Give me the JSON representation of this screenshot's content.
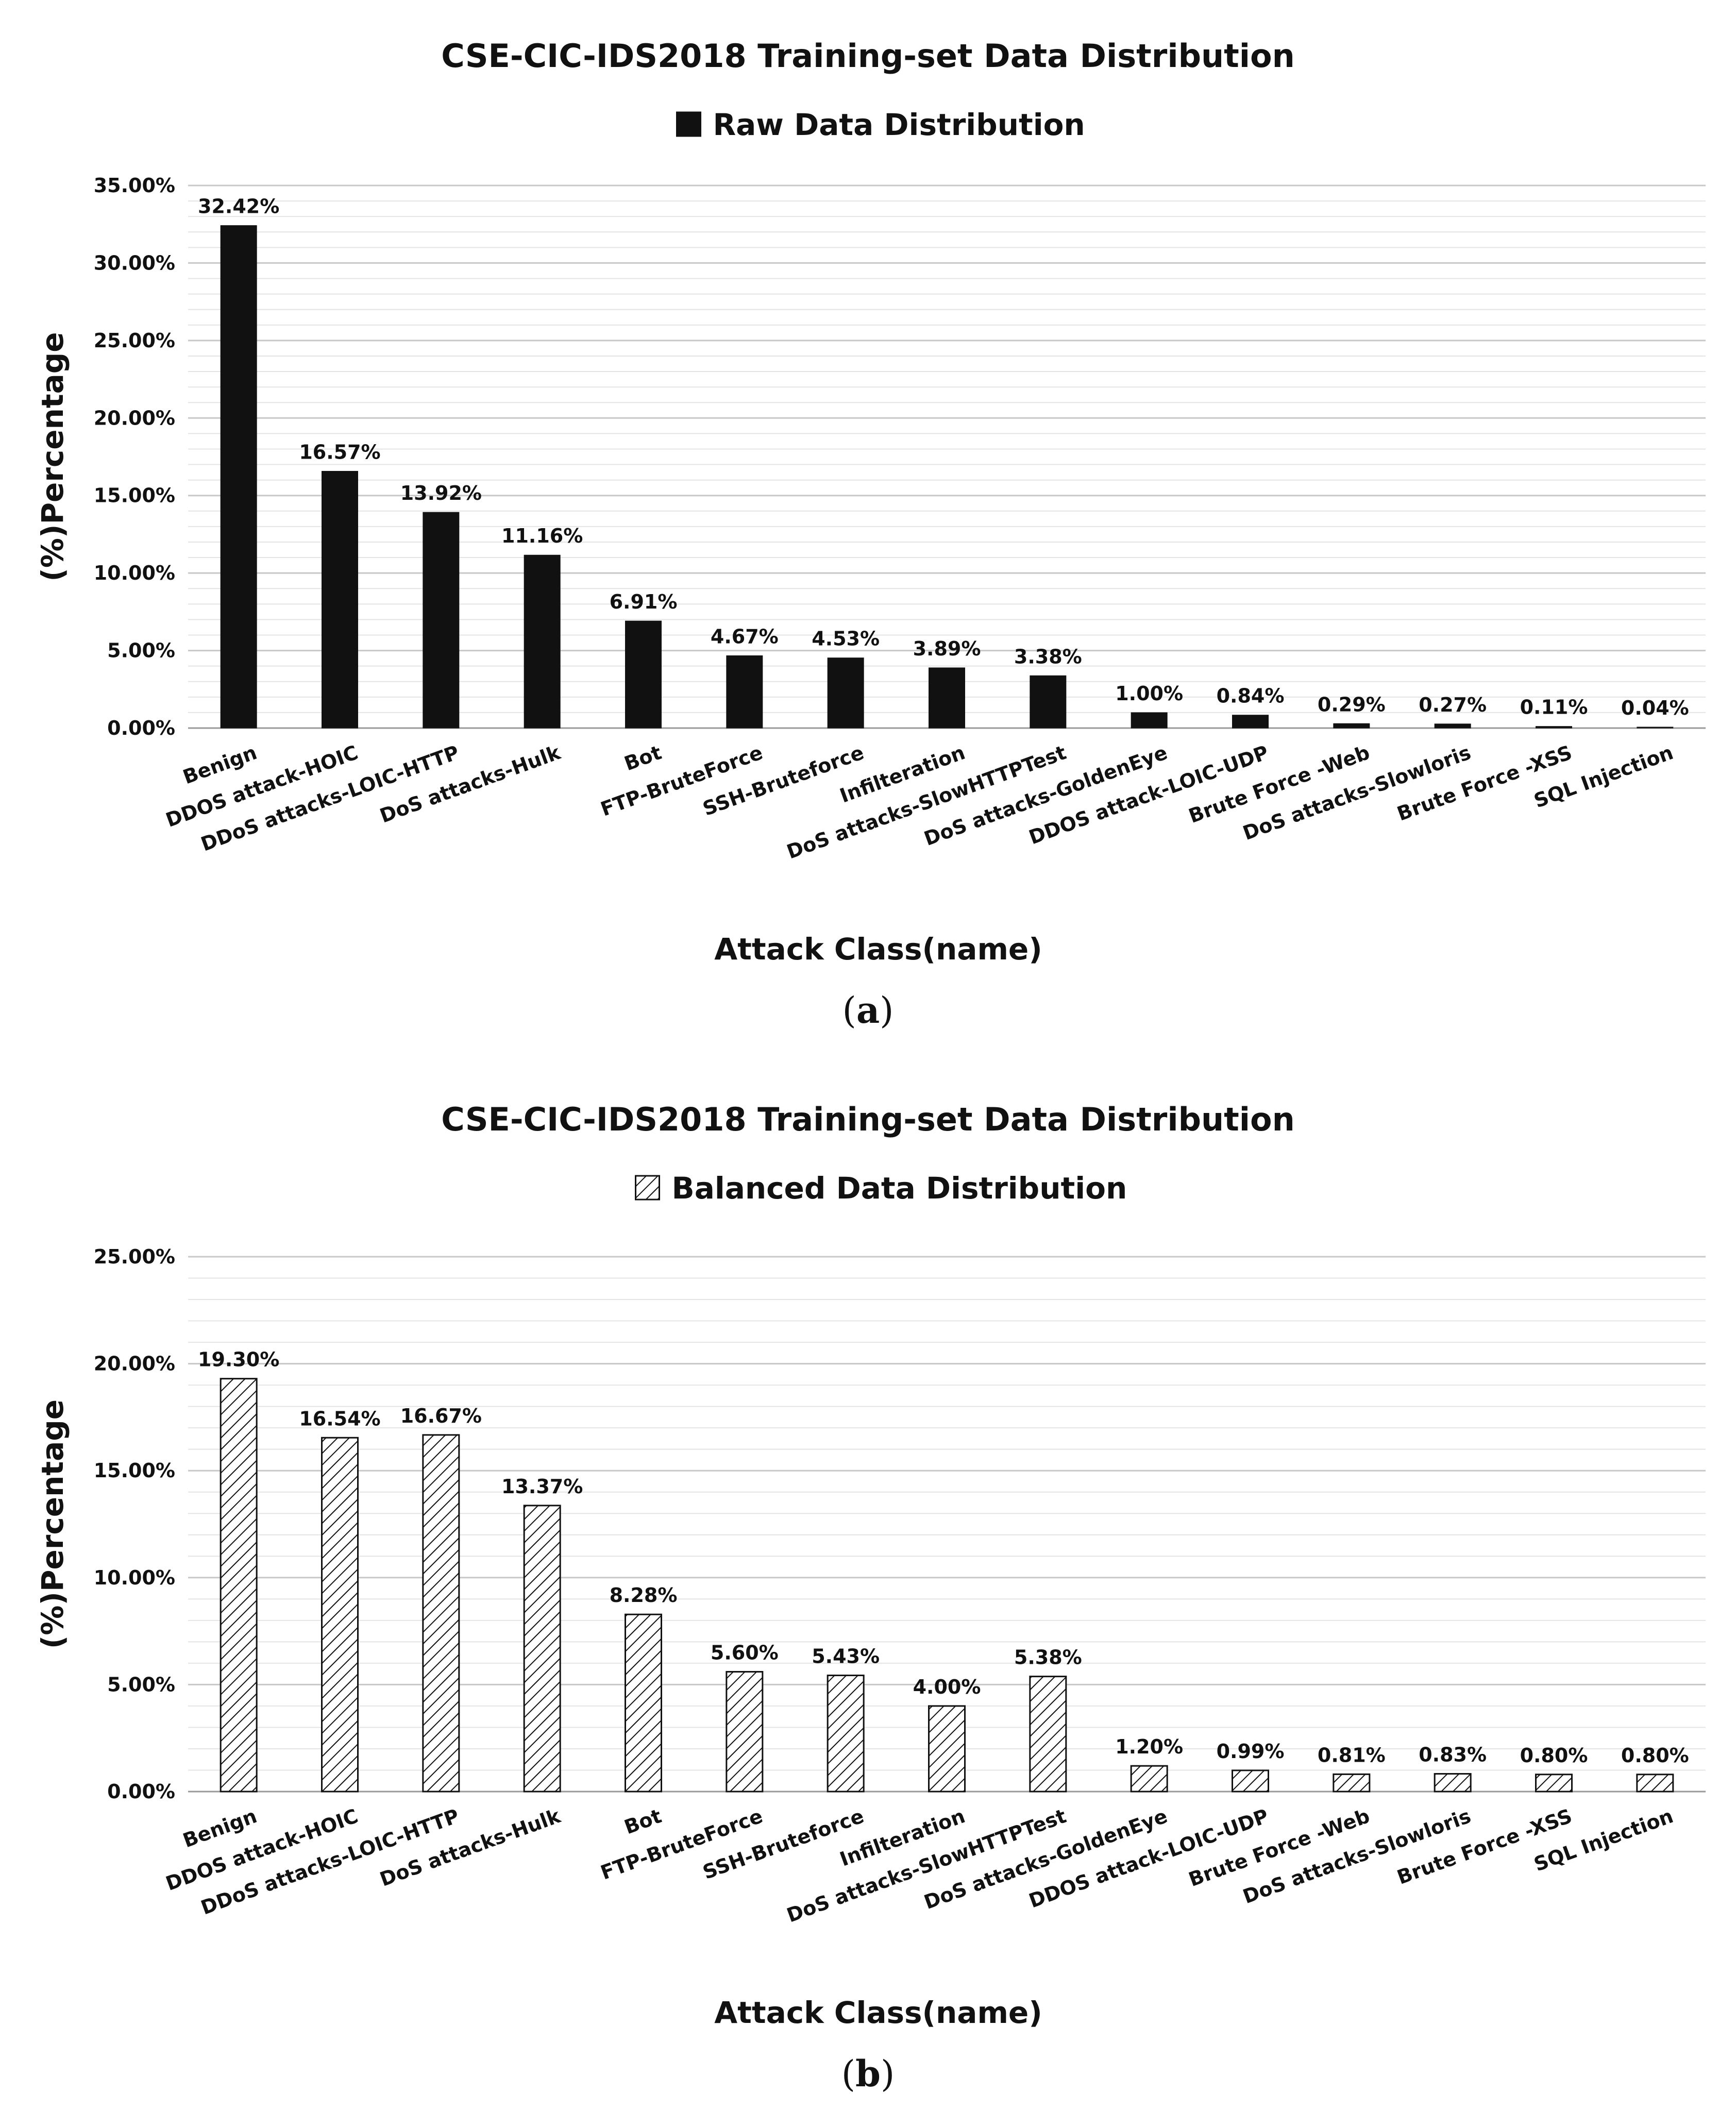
{
  "chart_data": [
    {
      "type": "bar",
      "title": "CSE-CIC-IDS2018 Training-set Data Distribution",
      "legend": "Raw Data Distribution",
      "legend_placement": "top-center",
      "xlabel": "Attack Class(name)",
      "ylabel": "(%)Percentage",
      "caption_letter": "a",
      "ylim": [
        0,
        35
      ],
      "yticks": [
        "0.00%",
        "5.00%",
        "10.00%",
        "15.00%",
        "20.00%",
        "25.00%",
        "30.00%",
        "35.00%"
      ],
      "minor_grid_step": 1,
      "grid": true,
      "bar_style": "solid",
      "bar_color": "#111111",
      "categories": [
        "Benign",
        "DDOS attack-HOIC",
        "DDoS attacks-LOIC-HTTP",
        "DoS attacks-Hulk",
        "Bot",
        "FTP-BruteForce",
        "SSH-Bruteforce",
        "Infilteration",
        "DoS attacks-SlowHTTPTest",
        "DoS attacks-GoldenEye",
        "DDOS attack-LOIC-UDP",
        "Brute Force -Web",
        "DoS attacks-Slowloris",
        "Brute Force -XSS",
        "SQL Injection"
      ],
      "values": [
        32.42,
        16.57,
        13.92,
        11.16,
        6.91,
        4.67,
        4.53,
        3.89,
        3.38,
        1.0,
        0.84,
        0.29,
        0.27,
        0.11,
        0.04
      ],
      "value_labels": [
        "32.42%",
        "16.57%",
        "13.92%",
        "11.16%",
        "6.91%",
        "4.67%",
        "4.53%",
        "3.89%",
        "3.38%",
        "1.00%",
        "0.84%",
        "0.29%",
        "0.27%",
        "0.11%",
        "0.04%"
      ]
    },
    {
      "type": "bar",
      "title": "CSE-CIC-IDS2018 Training-set Data Distribution",
      "legend": "Balanced Data Distribution",
      "legend_placement": "top-center",
      "xlabel": "Attack Class(name)",
      "ylabel": "(%)Percentage",
      "caption_letter": "b",
      "ylim": [
        0,
        25
      ],
      "yticks": [
        "0.00%",
        "5.00%",
        "10.00%",
        "15.00%",
        "20.00%",
        "25.00%"
      ],
      "minor_grid_step": 1,
      "grid": true,
      "bar_style": "hatched",
      "bar_color": "#111111",
      "categories": [
        "Benign",
        "DDOS attack-HOIC",
        "DDoS attacks-LOIC-HTTP",
        "DoS attacks-Hulk",
        "Bot",
        "FTP-BruteForce",
        "SSH-Bruteforce",
        "Infilteration",
        "DoS attacks-SlowHTTPTest",
        "DoS attacks-GoldenEye",
        "DDOS attack-LOIC-UDP",
        "Brute Force -Web",
        "DoS attacks-Slowloris",
        "Brute Force -XSS",
        "SQL Injection"
      ],
      "values": [
        19.3,
        16.54,
        16.67,
        13.37,
        8.28,
        5.6,
        5.43,
        4.0,
        5.38,
        1.2,
        0.99,
        0.81,
        0.83,
        0.8,
        0.8
      ],
      "value_labels": [
        "19.30%",
        "16.54%",
        "16.67%",
        "13.37%",
        "8.28%",
        "5.60%",
        "5.43%",
        "4.00%",
        "5.38%",
        "1.20%",
        "0.99%",
        "0.81%",
        "0.83%",
        "0.80%",
        "0.80%"
      ]
    }
  ]
}
